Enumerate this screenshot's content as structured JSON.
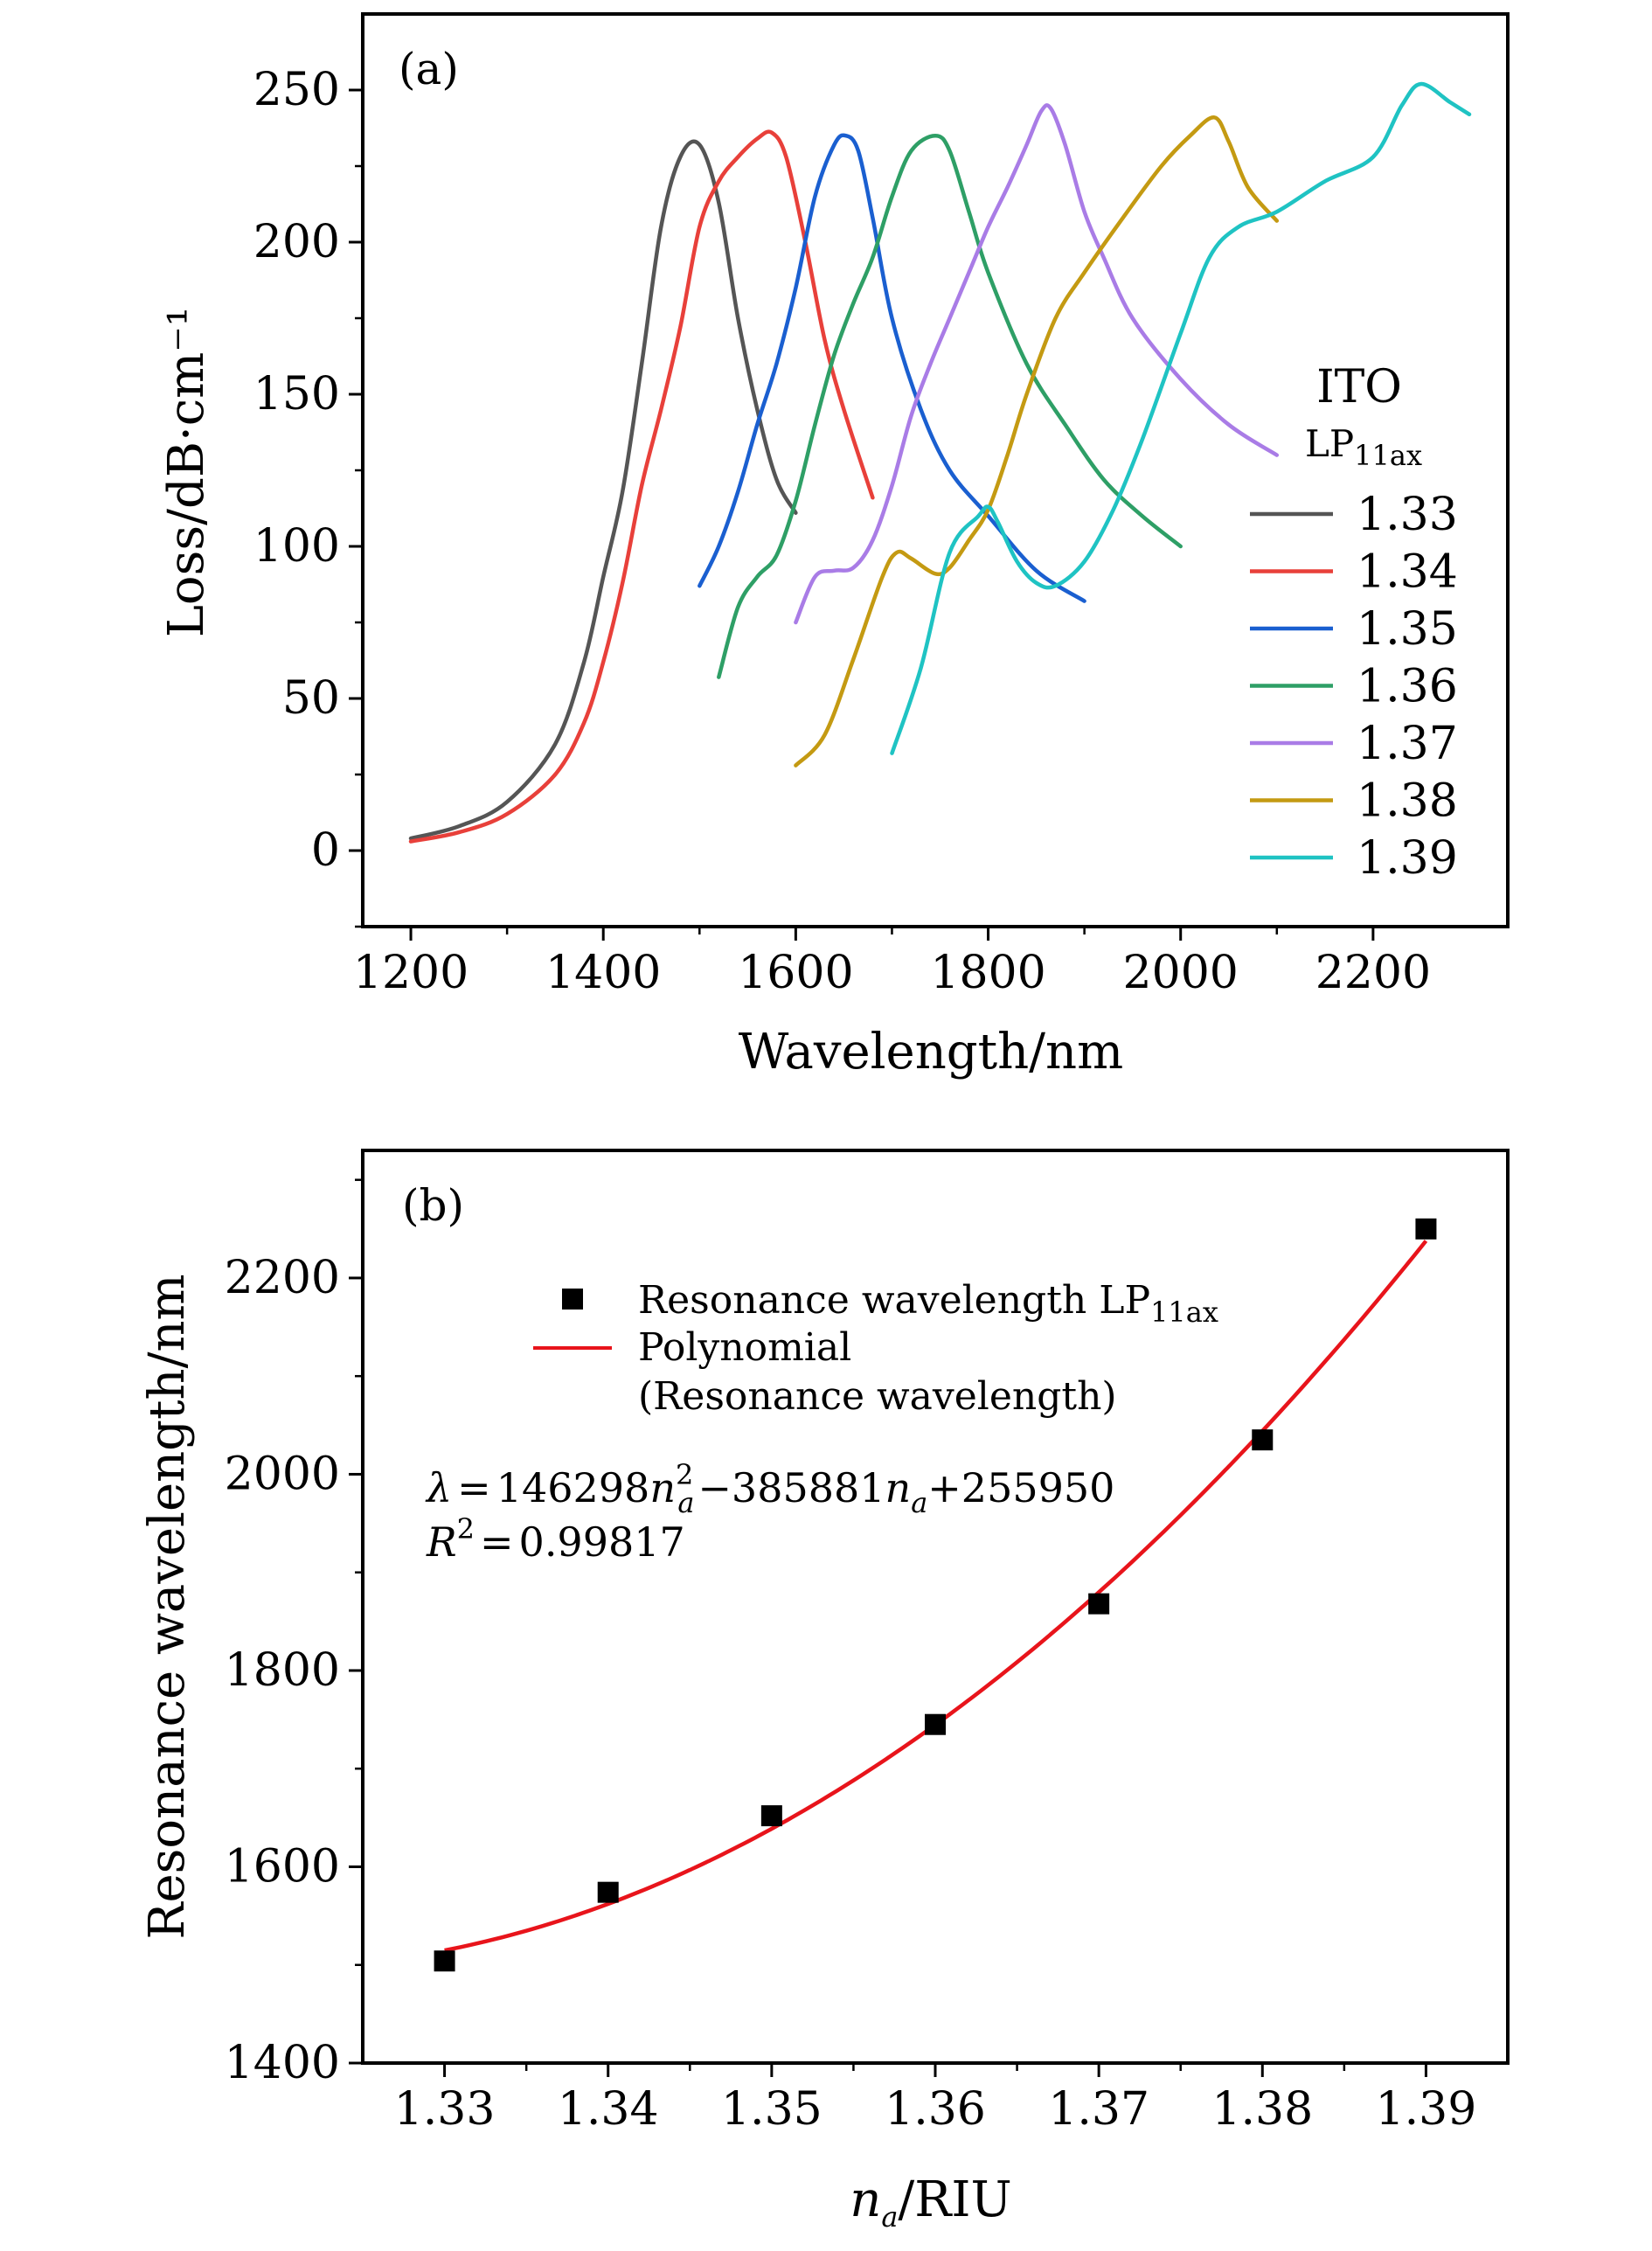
{
  "chart_data": [
    {
      "panel": "(a)",
      "type": "line",
      "xlabel": "Wavelength/nm",
      "ylabel": "Loss/dB·cm⁻¹",
      "xlim": [
        1150,
        2340
      ],
      "ylim": [
        -25,
        275
      ],
      "xticks": [
        1200,
        1400,
        1600,
        1800,
        2000,
        2200
      ],
      "yticks": [
        0,
        50,
        100,
        150,
        200,
        250
      ],
      "grid": false,
      "legend": {
        "placement": "right",
        "title": "ITO",
        "subtitle_main": "LP",
        "subtitle_sub": "11ax"
      },
      "series": [
        {
          "name": "1.33",
          "color": "#555555",
          "x": [
            1200,
            1250,
            1300,
            1350,
            1380,
            1400,
            1420,
            1440,
            1460,
            1480,
            1500,
            1520,
            1540,
            1560,
            1580,
            1600
          ],
          "y": [
            4,
            8,
            16,
            35,
            62,
            90,
            118,
            160,
            205,
            228,
            232,
            213,
            175,
            145,
            122,
            111
          ]
        },
        {
          "name": "1.34",
          "color": "#e8403a",
          "x": [
            1200,
            1250,
            1300,
            1350,
            1380,
            1400,
            1420,
            1440,
            1460,
            1480,
            1500,
            1520,
            1540,
            1560,
            1575,
            1590,
            1610,
            1630,
            1650,
            1680
          ],
          "y": [
            3,
            6,
            12,
            25,
            42,
            62,
            88,
            120,
            145,
            172,
            205,
            220,
            228,
            234,
            236,
            228,
            200,
            168,
            145,
            116
          ]
        },
        {
          "name": "1.35",
          "color": "#1a5fd0",
          "x": [
            1500,
            1520,
            1540,
            1560,
            1580,
            1600,
            1620,
            1640,
            1652,
            1665,
            1680,
            1700,
            1730,
            1760,
            1800,
            1850,
            1900
          ],
          "y": [
            87,
            100,
            118,
            140,
            160,
            185,
            215,
            232,
            235,
            230,
            208,
            175,
            145,
            125,
            110,
            92,
            82
          ]
        },
        {
          "name": "1.36",
          "color": "#2e9f66",
          "x": [
            1520,
            1540,
            1560,
            1580,
            1600,
            1620,
            1640,
            1660,
            1680,
            1700,
            1720,
            1745,
            1760,
            1780,
            1800,
            1840,
            1880,
            1920,
            1960,
            2000
          ],
          "y": [
            57,
            80,
            90,
            97,
            115,
            140,
            163,
            180,
            195,
            215,
            230,
            235,
            230,
            210,
            190,
            160,
            140,
            122,
            110,
            100
          ]
        },
        {
          "name": "1.37",
          "color": "#a97ce6",
          "x": [
            1600,
            1620,
            1640,
            1660,
            1680,
            1700,
            1720,
            1740,
            1760,
            1780,
            1800,
            1820,
            1840,
            1855,
            1865,
            1880,
            1900,
            1920,
            1950,
            2000,
            2050,
            2100
          ],
          "y": [
            75,
            90,
            92,
            93,
            102,
            120,
            143,
            160,
            175,
            190,
            205,
            218,
            232,
            243,
            244,
            232,
            210,
            195,
            175,
            155,
            140,
            130
          ]
        },
        {
          "name": "1.38",
          "color": "#c49a12",
          "x": [
            1600,
            1630,
            1660,
            1690,
            1705,
            1720,
            1745,
            1760,
            1780,
            1800,
            1820,
            1840,
            1870,
            1900,
            1940,
            1980,
            2010,
            2035,
            2050,
            2070,
            2100
          ],
          "y": [
            28,
            38,
            63,
            90,
            98,
            96,
            91,
            93,
            102,
            112,
            130,
            150,
            175,
            190,
            208,
            225,
            235,
            241,
            233,
            218,
            207
          ]
        },
        {
          "name": "1.39",
          "color": "#1fc3c3",
          "x": [
            1700,
            1730,
            1760,
            1790,
            1800,
            1810,
            1830,
            1850,
            1870,
            1900,
            1930,
            1960,
            2000,
            2030,
            2060,
            2100,
            2150,
            2200,
            2230,
            2250,
            2280,
            2300
          ],
          "y": [
            32,
            60,
            98,
            110,
            113,
            108,
            95,
            88,
            87,
            95,
            112,
            135,
            170,
            195,
            205,
            210,
            220,
            228,
            245,
            252,
            246,
            242
          ]
        }
      ]
    },
    {
      "panel": "(b)",
      "type": "scatter",
      "xlabel_italic": "n",
      "xlabel_sub": "a",
      "xlabel_rest": "/RIU",
      "ylabel": "Resonance wavelength/nm",
      "xlim": [
        1.325,
        1.395
      ],
      "ylim": [
        1400,
        2330
      ],
      "xticks": [
        1.33,
        1.34,
        1.35,
        1.36,
        1.37,
        1.38,
        1.39
      ],
      "xtick_labels": [
        "1.33",
        "1.34",
        "1.35",
        "1.36",
        "1.37",
        "1.38",
        "1.39"
      ],
      "yticks": [
        1400,
        1600,
        1800,
        2000,
        2200
      ],
      "grid": false,
      "points": {
        "name": "Resonance wavelength LP",
        "name_sub": "11ax",
        "x": [
          1.33,
          1.34,
          1.35,
          1.36,
          1.37,
          1.38,
          1.39
        ],
        "y": [
          1504,
          1574,
          1652,
          1745,
          1868,
          2035,
          2250
        ]
      },
      "fit": {
        "name_line1": "Polynomial",
        "name_line2": "(Resonance wavelength)",
        "color": "#e8141b",
        "coefficients": [
          146298,
          -385881,
          255950
        ]
      },
      "equation": {
        "lambda": "λ",
        "part1": "146298",
        "part2": "−385881",
        "part3": "+255950",
        "r2_value": "0.99817"
      }
    }
  ]
}
